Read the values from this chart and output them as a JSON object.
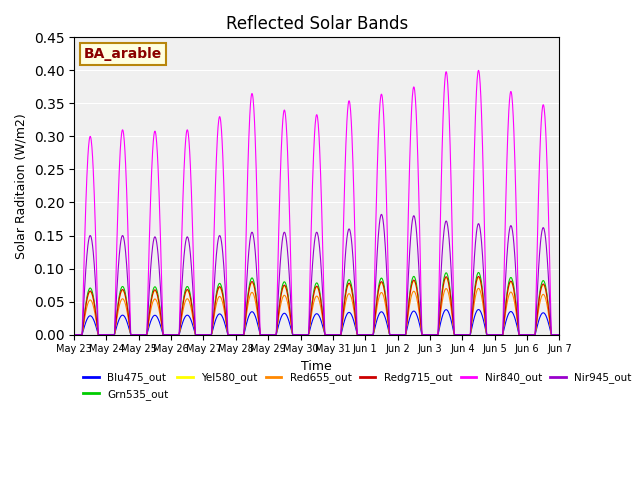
{
  "title": "Reflected Solar Bands",
  "xlabel": "Time",
  "ylabel": "Solar Raditaion (W/m2)",
  "ylim": [
    0,
    0.45
  ],
  "annotation": "BA_arable",
  "xtick_labels": [
    "May 23",
    "May 24",
    "May 25",
    "May 26",
    "May 27",
    "May 28",
    "May 29",
    "May 30",
    "May 31",
    "Jun 1",
    "Jun 2",
    "Jun 3",
    "Jun 4",
    "Jun 5",
    "Jun 6",
    "Jun 7"
  ],
  "series_order": [
    "Blu475_out",
    "Grn535_out",
    "Yel580_out",
    "Red655_out",
    "Redg715_out",
    "Nir840_out",
    "Nir945_out"
  ],
  "series": {
    "Blu475_out": {
      "color": "#0000ff"
    },
    "Grn535_out": {
      "color": "#00cc00"
    },
    "Yel580_out": {
      "color": "#ffff00"
    },
    "Red655_out": {
      "color": "#ff8800"
    },
    "Redg715_out": {
      "color": "#cc0000"
    },
    "Nir840_out": {
      "color": "#ff00ff"
    },
    "Nir945_out": {
      "color": "#9900cc"
    }
  },
  "daily_peaks_nir840": [
    0.3,
    0.31,
    0.308,
    0.31,
    0.33,
    0.365,
    0.34,
    0.333,
    0.354,
    0.364,
    0.375,
    0.398,
    0.4,
    0.368,
    0.348
  ],
  "daily_peaks_nir945": [
    0.15,
    0.15,
    0.148,
    0.148,
    0.15,
    0.155,
    0.155,
    0.155,
    0.16,
    0.182,
    0.18,
    0.172,
    0.168,
    0.165,
    0.162
  ],
  "plot_bg": "#f0f0f0"
}
